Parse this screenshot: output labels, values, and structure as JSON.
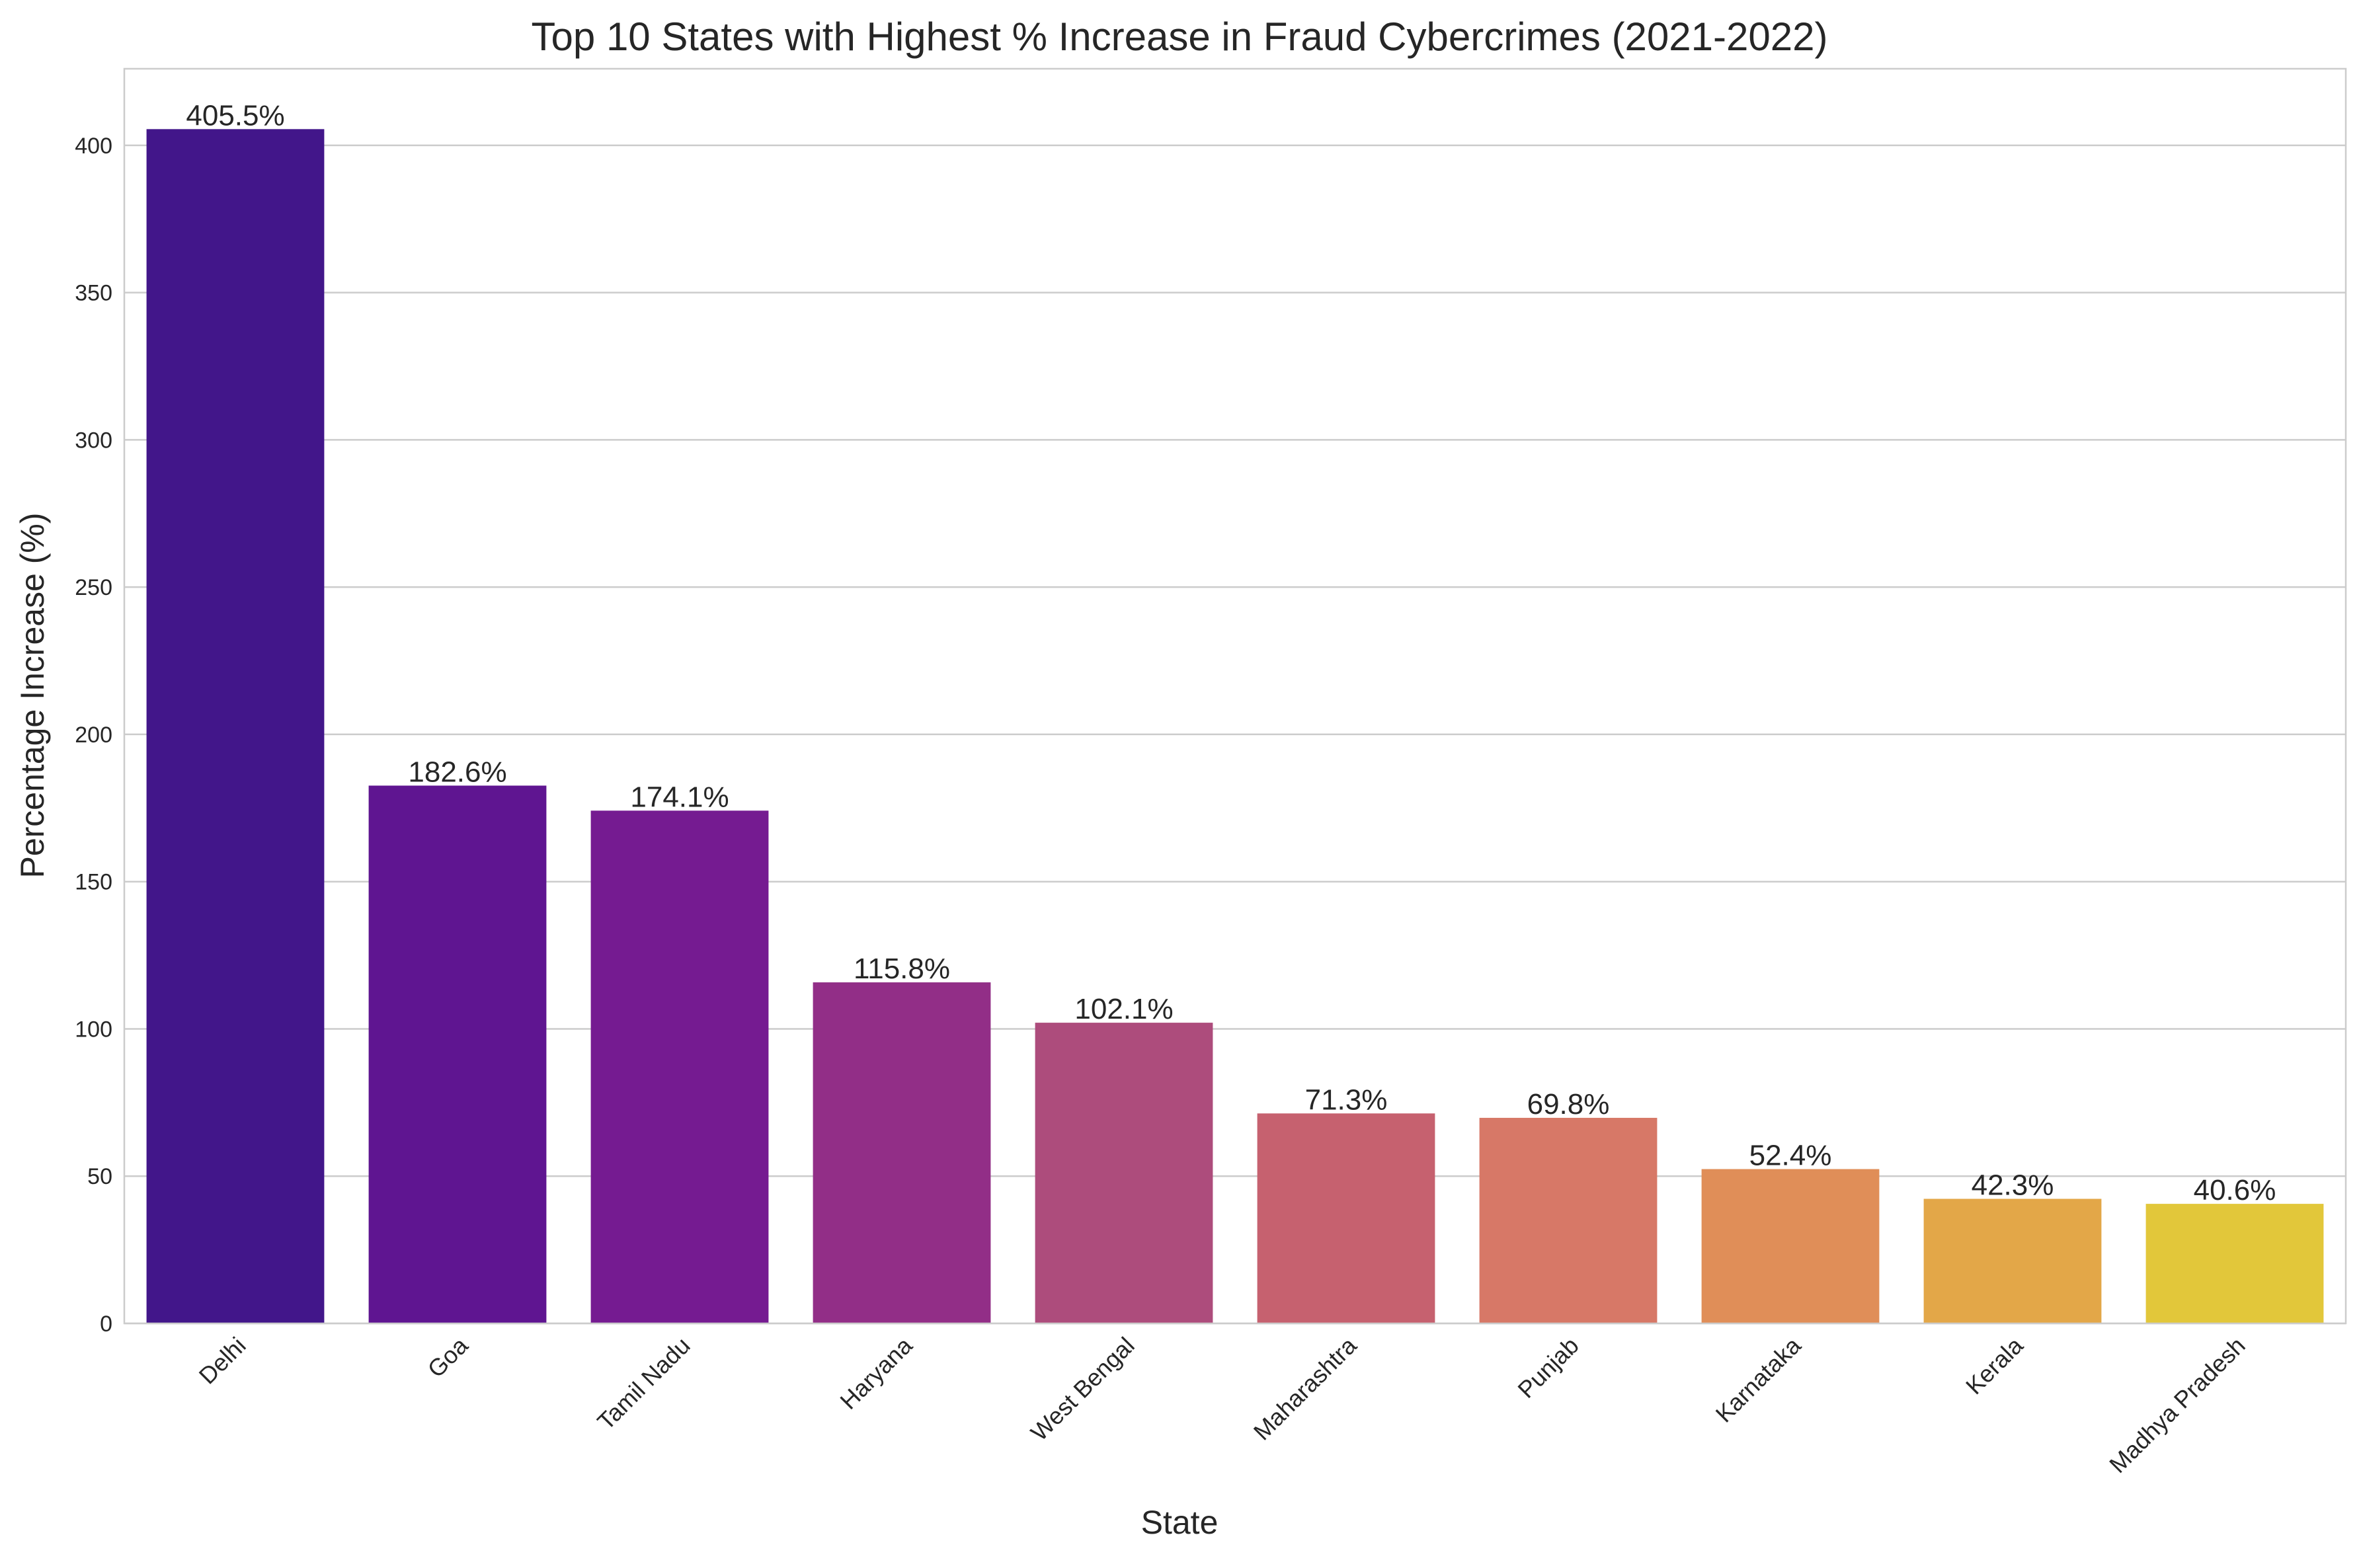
{
  "chart_data": {
    "type": "bar",
    "title": "Top 10 States with Highest % Increase in Fraud Cybercrimes (2021-2022)",
    "xlabel": "State",
    "ylabel": "Percentage Increase (%)",
    "ylim": [
      0,
      426
    ],
    "yticks": [
      "0",
      "50",
      "100",
      "150",
      "200",
      "250",
      "300",
      "350",
      "400"
    ],
    "grid": "horizontal",
    "categories": [
      "Delhi",
      "Goa",
      "Tamil Nadu",
      "Haryana",
      "West Bengal",
      "Maharashtra",
      "Punjab",
      "Karnataka",
      "Kerala",
      "Madhya Pradesh"
    ],
    "values": [
      405.5,
      182.6,
      174.1,
      115.8,
      102.1,
      71.3,
      69.8,
      52.4,
      42.3,
      40.6
    ],
    "data_labels": [
      "405.5%",
      "182.6%",
      "174.1%",
      "115.8%",
      "102.1%",
      "71.3%",
      "69.8%",
      "52.4%",
      "42.3%",
      "40.6%"
    ],
    "colors": [
      "#42168a",
      "#5f1591",
      "#751b91",
      "#922e87",
      "#ad4c7c",
      "#c6616f",
      "#d77867",
      "#e08e58",
      "#e3a748",
      "#e2c73a"
    ]
  }
}
